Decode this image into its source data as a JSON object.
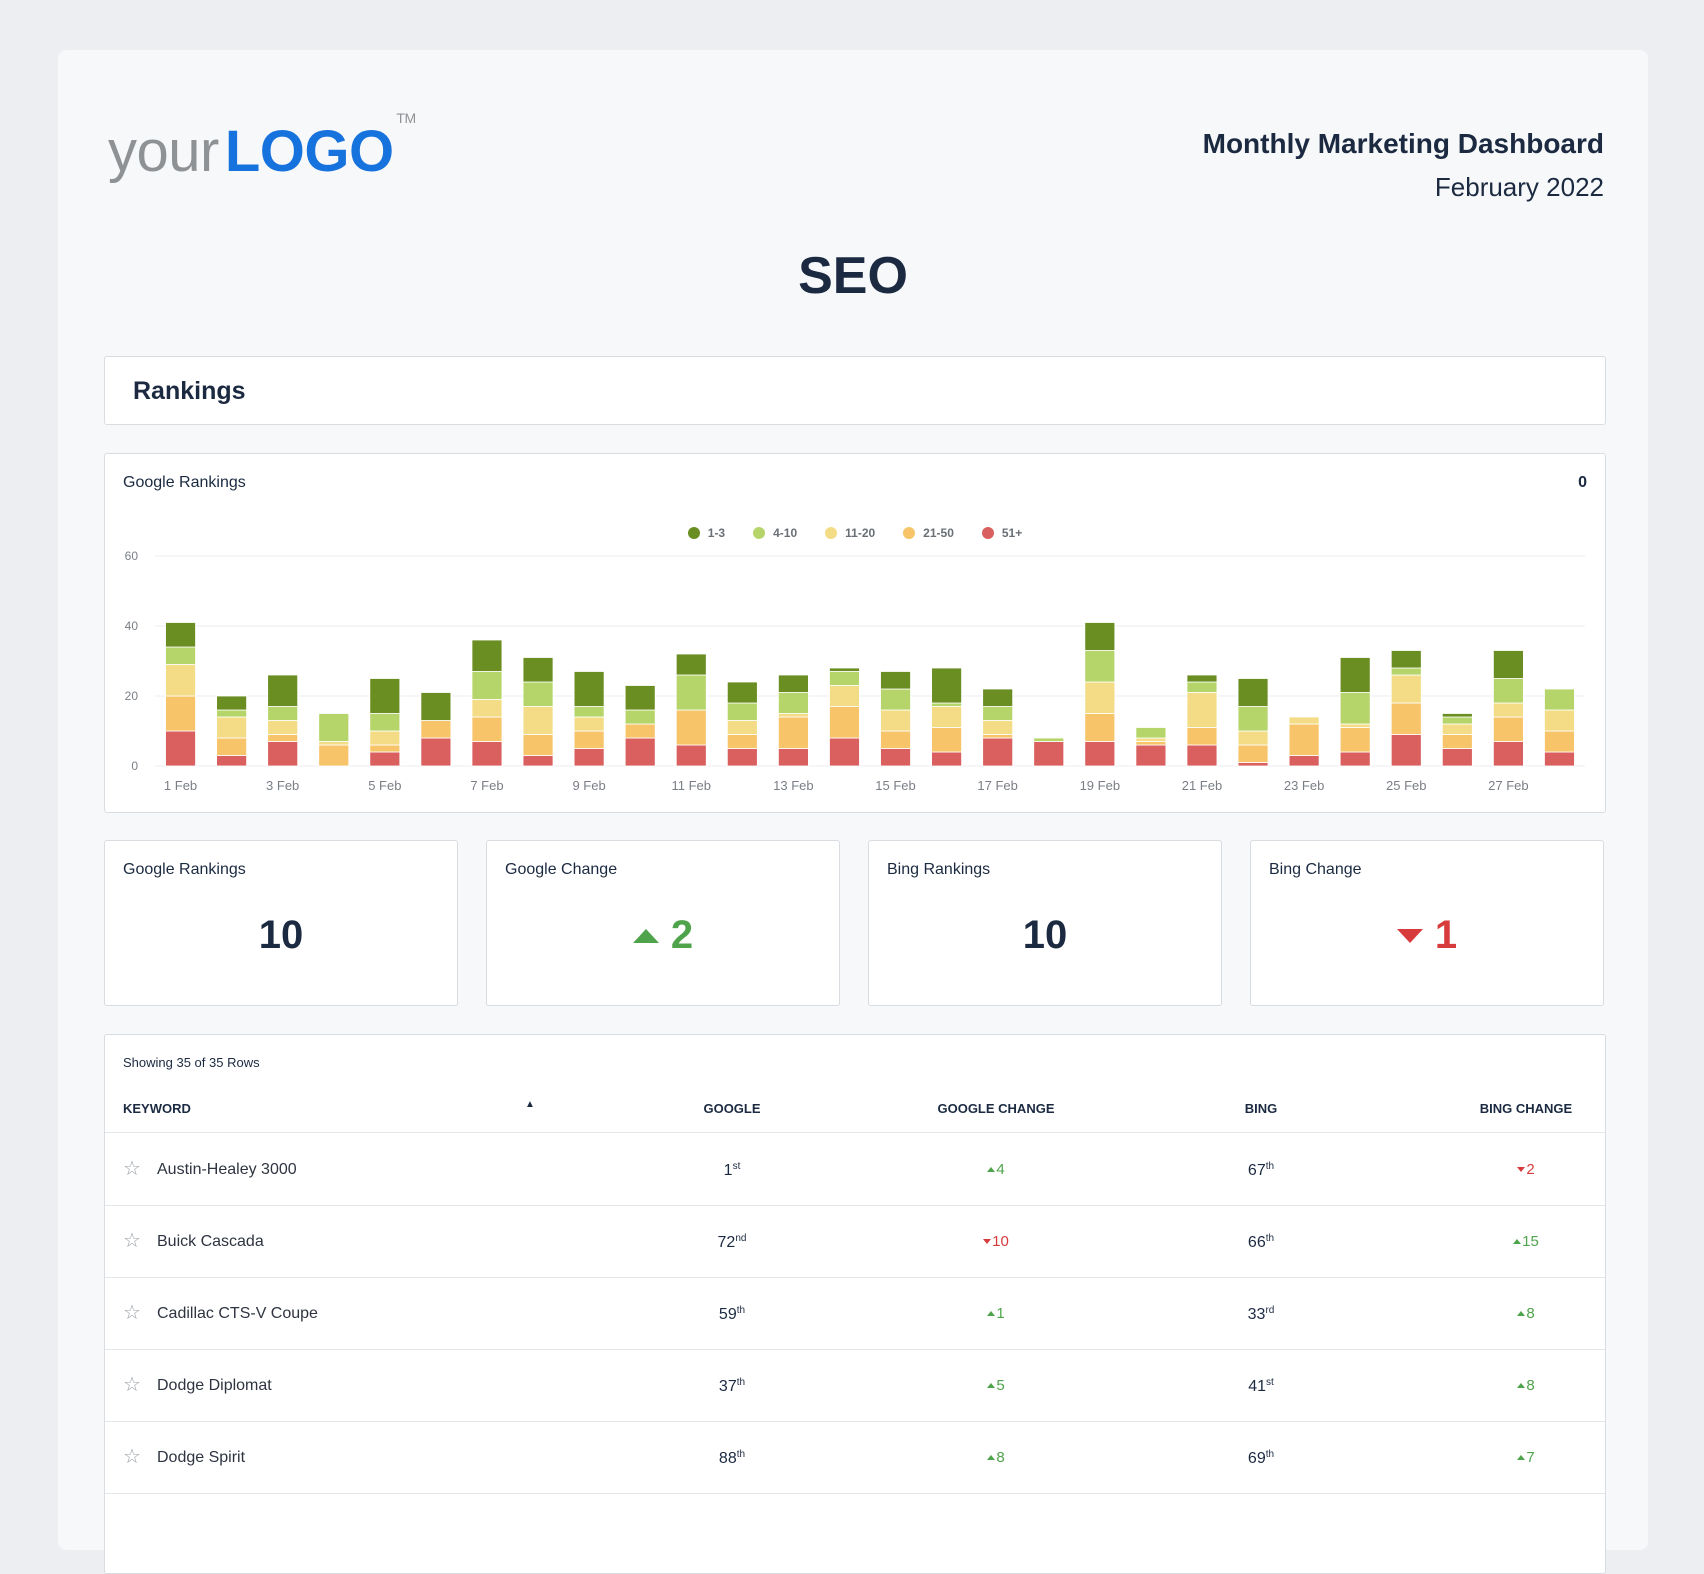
{
  "header": {
    "logo_your": "your",
    "logo_brand": "LOGO",
    "logo_tm": "TM",
    "report_title": "Monthly Marketing Dashboard",
    "report_date": "February 2022"
  },
  "section_title": "SEO",
  "rankings_header": "Rankings",
  "chart_panel": {
    "title": "Google Rankings",
    "count": "0"
  },
  "colors": {
    "r1_3": "#6b8e23",
    "r4_10": "#b5d56a",
    "r11_20": "#f4dc87",
    "r21_50": "#f7c46a",
    "r51": "#d9605f",
    "up": "#4fa44b",
    "down": "#d83b3b",
    "brand": "#1672dd"
  },
  "chart_data": {
    "type": "bar",
    "stacked": true,
    "legend_position": "top-center",
    "grid": true,
    "ylim": [
      0,
      60
    ],
    "yticks": [
      "0",
      "20",
      "40",
      "60"
    ],
    "categories": [
      "1 Feb",
      "2 Feb",
      "3 Feb",
      "4 Feb",
      "5 Feb",
      "6 Feb",
      "7 Feb",
      "8 Feb",
      "9 Feb",
      "10 Feb",
      "11 Feb",
      "12 Feb",
      "13 Feb",
      "14 Feb",
      "15 Feb",
      "16 Feb",
      "17 Feb",
      "18 Feb",
      "19 Feb",
      "20 Feb",
      "21 Feb",
      "22 Feb",
      "23 Feb",
      "24 Feb",
      "25 Feb",
      "26 Feb",
      "27 Feb",
      "28 Feb"
    ],
    "xtick_labels": [
      "1 Feb",
      "3 Feb",
      "5 Feb",
      "7 Feb",
      "9 Feb",
      "11 Feb",
      "13 Feb",
      "15 Feb",
      "17 Feb",
      "19 Feb",
      "21 Feb",
      "23 Feb",
      "25 Feb",
      "27 Feb"
    ],
    "series": [
      {
        "name": "51+",
        "values": [
          10,
          3,
          7,
          0,
          4,
          8,
          7,
          3,
          5,
          8,
          6,
          5,
          5,
          8,
          5,
          4,
          8,
          7,
          7,
          6,
          6,
          1,
          3,
          4,
          9,
          5,
          7,
          4
        ]
      },
      {
        "name": "21-50",
        "values": [
          10,
          5,
          2,
          6,
          2,
          5,
          7,
          6,
          5,
          4,
          10,
          4,
          9,
          9,
          5,
          7,
          1,
          0,
          8,
          1,
          5,
          5,
          9,
          7,
          9,
          4,
          7,
          6
        ]
      },
      {
        "name": "11-20",
        "values": [
          9,
          6,
          4,
          1,
          4,
          0,
          5,
          8,
          4,
          0,
          0,
          4,
          1,
          6,
          6,
          6,
          4,
          0,
          9,
          1,
          10,
          4,
          2,
          1,
          8,
          3,
          4,
          6
        ]
      },
      {
        "name": "4-10",
        "values": [
          5,
          2,
          4,
          8,
          5,
          0,
          8,
          7,
          3,
          4,
          10,
          5,
          6,
          4,
          6,
          1,
          4,
          1,
          9,
          3,
          3,
          7,
          0,
          9,
          2,
          2,
          7,
          6
        ]
      },
      {
        "name": "1-3",
        "values": [
          7,
          4,
          9,
          0,
          10,
          8,
          9,
          7,
          10,
          7,
          6,
          6,
          5,
          1,
          5,
          10,
          5,
          0,
          8,
          0,
          2,
          8,
          0,
          10,
          5,
          1,
          8,
          0
        ]
      }
    ]
  },
  "stats": [
    {
      "label": "Google Rankings",
      "value": "10"
    },
    {
      "label": "Google Change",
      "value": "2",
      "direction": "up"
    },
    {
      "label": "Bing Rankings",
      "value": "10"
    },
    {
      "label": "Bing Change",
      "value": "1",
      "direction": "down"
    }
  ],
  "table": {
    "rows_info": "Showing 35 of 35 Rows",
    "columns": [
      "KEYWORD",
      "GOOGLE",
      "GOOGLE CHANGE",
      "BING",
      "BING CHANGE"
    ],
    "rows": [
      {
        "keyword": "Austin-Healey 3000",
        "google": "1",
        "google_sfx": "st",
        "gchange": "4",
        "gdir": "up",
        "bing": "67",
        "bing_sfx": "th",
        "bchange": "2",
        "bdir": "down"
      },
      {
        "keyword": "Buick Cascada",
        "google": "72",
        "google_sfx": "nd",
        "gchange": "10",
        "gdir": "down",
        "bing": "66",
        "bing_sfx": "th",
        "bchange": "15",
        "bdir": "up"
      },
      {
        "keyword": "Cadillac CTS-V Coupe",
        "google": "59",
        "google_sfx": "th",
        "gchange": "1",
        "gdir": "up",
        "bing": "33",
        "bing_sfx": "rd",
        "bchange": "8",
        "bdir": "up"
      },
      {
        "keyword": "Dodge Diplomat",
        "google": "37",
        "google_sfx": "th",
        "gchange": "5",
        "gdir": "up",
        "bing": "41",
        "bing_sfx": "st",
        "bchange": "8",
        "bdir": "up"
      },
      {
        "keyword": "Dodge Spirit",
        "google": "88",
        "google_sfx": "th",
        "gchange": "8",
        "gdir": "up",
        "bing": "69",
        "bing_sfx": "th",
        "bchange": "7",
        "bdir": "up"
      }
    ]
  }
}
